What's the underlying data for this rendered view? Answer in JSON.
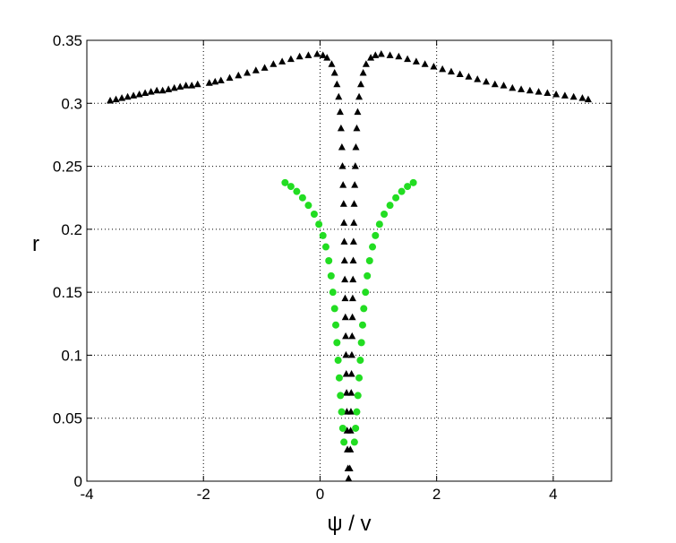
{
  "chart_data": {
    "type": "scatter",
    "title": "",
    "xlabel": "ψ / v",
    "ylabel": "r",
    "xlim": [
      -4,
      5
    ],
    "ylim": [
      0,
      0.35
    ],
    "grid": true,
    "grid_style": "dotted",
    "x_ticks": [
      -4,
      -2,
      0,
      2,
      4
    ],
    "x_tick_labels": [
      "-4",
      "-2",
      "0",
      "2",
      "4"
    ],
    "y_ticks": [
      0,
      0.05,
      0.1,
      0.15,
      0.2,
      0.25,
      0.3,
      0.35
    ],
    "y_tick_labels": [
      "0",
      "0.05",
      "0.1",
      "0.15",
      "0.2",
      "0.25",
      "0.3",
      "0.35"
    ],
    "series": [
      {
        "marker": "triangle",
        "color": "#000000",
        "points": [
          [
            -3.6,
            0.302
          ],
          [
            -3.5,
            0.303
          ],
          [
            -3.4,
            0.304
          ],
          [
            -3.3,
            0.305
          ],
          [
            -3.2,
            0.306
          ],
          [
            -3.1,
            0.307
          ],
          [
            -3.0,
            0.308
          ],
          [
            -2.9,
            0.309
          ],
          [
            -2.8,
            0.31
          ],
          [
            -2.7,
            0.31
          ],
          [
            -2.6,
            0.311
          ],
          [
            -2.5,
            0.312
          ],
          [
            -2.4,
            0.313
          ],
          [
            -2.3,
            0.314
          ],
          [
            -2.2,
            0.314
          ],
          [
            -2.1,
            0.315
          ],
          [
            -1.9,
            0.316
          ],
          [
            -1.8,
            0.317
          ],
          [
            -1.7,
            0.318
          ],
          [
            -1.55,
            0.32
          ],
          [
            -1.4,
            0.322
          ],
          [
            -1.25,
            0.324
          ],
          [
            -1.1,
            0.326
          ],
          [
            -0.95,
            0.328
          ],
          [
            -0.8,
            0.331
          ],
          [
            -0.65,
            0.333
          ],
          [
            -0.5,
            0.335
          ],
          [
            -0.35,
            0.337
          ],
          [
            -0.2,
            0.338
          ],
          [
            -0.05,
            0.339
          ],
          [
            0.05,
            0.338
          ],
          [
            0.12,
            0.336
          ],
          [
            0.2,
            0.331
          ],
          [
            0.25,
            0.324
          ],
          [
            0.29,
            0.315
          ],
          [
            0.32,
            0.305
          ],
          [
            0.345,
            0.293
          ],
          [
            0.36,
            0.28
          ],
          [
            0.375,
            0.265
          ],
          [
            0.385,
            0.25
          ],
          [
            0.395,
            0.235
          ],
          [
            0.405,
            0.22
          ],
          [
            0.41,
            0.205
          ],
          [
            0.415,
            0.19
          ],
          [
            0.42,
            0.175
          ],
          [
            0.425,
            0.16
          ],
          [
            0.43,
            0.145
          ],
          [
            0.435,
            0.13
          ],
          [
            0.44,
            0.115
          ],
          [
            0.445,
            0.1
          ],
          [
            0.45,
            0.085
          ],
          [
            0.455,
            0.07
          ],
          [
            0.46,
            0.055
          ],
          [
            0.465,
            0.04
          ],
          [
            0.47,
            0.025
          ],
          [
            0.48,
            0.01
          ],
          [
            0.49,
            0.002
          ],
          [
            0.51,
            0.01
          ],
          [
            0.52,
            0.025
          ],
          [
            0.525,
            0.04
          ],
          [
            0.53,
            0.055
          ],
          [
            0.535,
            0.07
          ],
          [
            0.54,
            0.085
          ],
          [
            0.545,
            0.1
          ],
          [
            0.55,
            0.115
          ],
          [
            0.555,
            0.13
          ],
          [
            0.56,
            0.145
          ],
          [
            0.565,
            0.16
          ],
          [
            0.57,
            0.175
          ],
          [
            0.575,
            0.19
          ],
          [
            0.58,
            0.205
          ],
          [
            0.585,
            0.22
          ],
          [
            0.595,
            0.235
          ],
          [
            0.605,
            0.25
          ],
          [
            0.615,
            0.265
          ],
          [
            0.63,
            0.28
          ],
          [
            0.645,
            0.293
          ],
          [
            0.67,
            0.305
          ],
          [
            0.7,
            0.315
          ],
          [
            0.74,
            0.324
          ],
          [
            0.79,
            0.331
          ],
          [
            0.87,
            0.336
          ],
          [
            0.95,
            0.338
          ],
          [
            1.05,
            0.339
          ],
          [
            1.2,
            0.338
          ],
          [
            1.35,
            0.337
          ],
          [
            1.5,
            0.335
          ],
          [
            1.65,
            0.333
          ],
          [
            1.8,
            0.331
          ],
          [
            1.95,
            0.329
          ],
          [
            2.1,
            0.327
          ],
          [
            2.25,
            0.325
          ],
          [
            2.4,
            0.323
          ],
          [
            2.55,
            0.321
          ],
          [
            2.7,
            0.319
          ],
          [
            2.85,
            0.317
          ],
          [
            3.0,
            0.315
          ],
          [
            3.15,
            0.314
          ],
          [
            3.3,
            0.312
          ],
          [
            3.45,
            0.311
          ],
          [
            3.6,
            0.31
          ],
          [
            3.75,
            0.309
          ],
          [
            3.9,
            0.308
          ],
          [
            4.05,
            0.307
          ],
          [
            4.2,
            0.306
          ],
          [
            4.35,
            0.305
          ],
          [
            4.5,
            0.304
          ],
          [
            4.6,
            0.303
          ]
        ]
      },
      {
        "marker": "circle",
        "color": "#22dd22",
        "points": [
          [
            -0.6,
            0.237
          ],
          [
            -0.5,
            0.234
          ],
          [
            -0.4,
            0.23
          ],
          [
            -0.3,
            0.225
          ],
          [
            -0.2,
            0.219
          ],
          [
            -0.1,
            0.212
          ],
          [
            -0.02,
            0.204
          ],
          [
            0.05,
            0.195
          ],
          [
            0.1,
            0.186
          ],
          [
            0.15,
            0.175
          ],
          [
            0.19,
            0.163
          ],
          [
            0.22,
            0.15
          ],
          [
            0.25,
            0.137
          ],
          [
            0.27,
            0.124
          ],
          [
            0.29,
            0.11
          ],
          [
            0.31,
            0.096
          ],
          [
            0.33,
            0.082
          ],
          [
            0.35,
            0.068
          ],
          [
            0.37,
            0.055
          ],
          [
            0.39,
            0.042
          ],
          [
            0.41,
            0.031
          ],
          [
            0.59,
            0.031
          ],
          [
            0.61,
            0.042
          ],
          [
            0.63,
            0.055
          ],
          [
            0.65,
            0.068
          ],
          [
            0.67,
            0.082
          ],
          [
            0.69,
            0.096
          ],
          [
            0.71,
            0.11
          ],
          [
            0.73,
            0.124
          ],
          [
            0.75,
            0.137
          ],
          [
            0.78,
            0.15
          ],
          [
            0.81,
            0.163
          ],
          [
            0.85,
            0.175
          ],
          [
            0.9,
            0.186
          ],
          [
            0.95,
            0.195
          ],
          [
            1.02,
            0.204
          ],
          [
            1.1,
            0.212
          ],
          [
            1.2,
            0.219
          ],
          [
            1.3,
            0.225
          ],
          [
            1.4,
            0.23
          ],
          [
            1.5,
            0.234
          ],
          [
            1.6,
            0.237
          ]
        ]
      }
    ]
  }
}
